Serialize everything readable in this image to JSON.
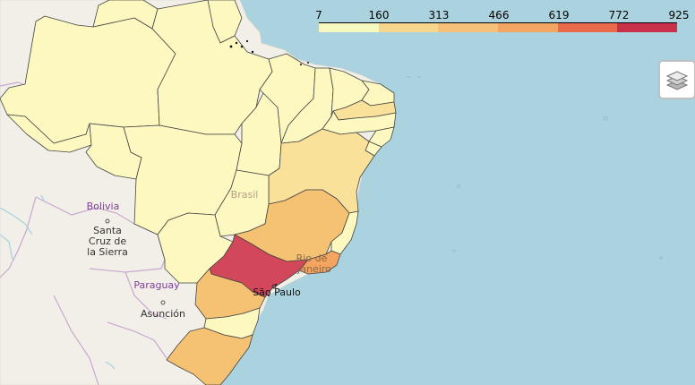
{
  "legend": {
    "ticks": [
      "7",
      "160",
      "313",
      "466",
      "619",
      "772",
      "925"
    ],
    "colors": [
      "#ffffbf",
      "#fee08b",
      "#fdc36b",
      "#f8a55a",
      "#ef6f4a",
      "#d9423f",
      "#c1224a"
    ]
  },
  "layers_control": {
    "icon": "layers-icon"
  },
  "map_labels": {
    "bolivia": "Bolivia",
    "santa_cruz_1": "Santa",
    "santa_cruz_2": "Cruz de",
    "santa_cruz_3": "la Sierra",
    "paraguay": "Paraguay",
    "asuncion": "Asunción",
    "brasil": "Brasil",
    "rio_1": "Rio de",
    "rio_2": "Janeiro",
    "sao_paulo": "São Paulo"
  },
  "colors": {
    "ocean": "#aad3df",
    "land": "#f2efe9",
    "border": "#b9a8c9",
    "label_country": "#7d3f98",
    "state_lowest": "#fcf8bf",
    "state_low": "#fae19a",
    "state_mid": "#f5c273",
    "state_high": "#f4a560",
    "state_top": "#d2475a"
  }
}
